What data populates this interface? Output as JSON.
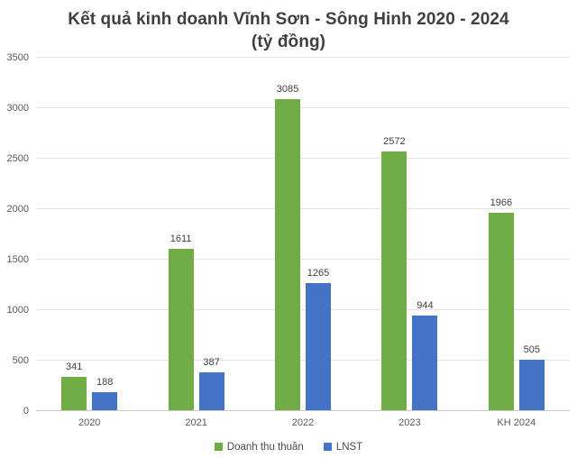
{
  "title": {
    "line1": "Kết quả kinh doanh Vĩnh Sơn - Sông Hinh 2020 - 2024",
    "line2": "(tỷ đồng)"
  },
  "colors": {
    "series_green": "#70AD47",
    "series_blue": "#4472C4",
    "title_text": "#3f3f3f",
    "axis_text": "#595959",
    "data_label_text": "#404040",
    "gridline": "#e4e4e4",
    "axis_line": "#c9c9c9",
    "background": "#ffffff"
  },
  "chart_data": {
    "type": "bar",
    "title": "Kết quả kinh doanh Vĩnh Sơn - Sông Hinh 2020 - 2024 (tỷ đồng)",
    "categories": [
      "2020",
      "2021",
      "2022",
      "2023",
      "KH 2024"
    ],
    "series": [
      {
        "name": "Doanh thu thuần",
        "color": "#70AD47",
        "values": [
          341,
          1611,
          3085,
          2572,
          1966
        ]
      },
      {
        "name": "LNST",
        "color": "#4472C4",
        "values": [
          188,
          387,
          1265,
          944,
          505
        ]
      }
    ],
    "xlabel": "",
    "ylabel": "",
    "ylim": [
      0,
      3500
    ],
    "ytick_step": 500,
    "grid": true,
    "data_labels": true,
    "legend_position": "bottom"
  }
}
